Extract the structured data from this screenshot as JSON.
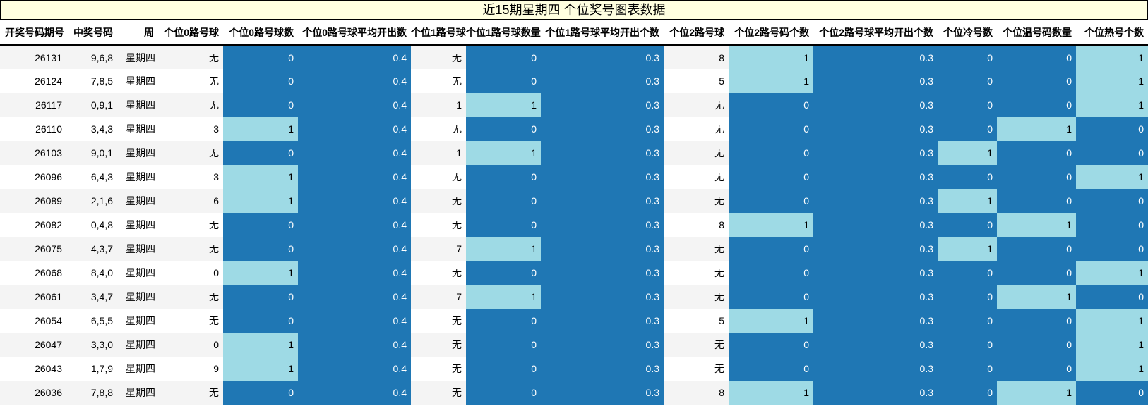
{
  "title": "近15期星期四 个位奖号图表数据",
  "colors": {
    "title_bg": "#ffffe0",
    "dark_fill": "#1f77b4",
    "light_fill": "#9edae5",
    "stripe": "#f4f4f4"
  },
  "columns": [
    "开奖号码期号",
    "中奖号码",
    "周",
    "个位0路号球",
    "个位0路号球数",
    "个位0路号球平均开出数",
    "个位1路号球",
    "个位1路号球数量",
    "个位1路号球平均开出个数",
    "个位2路号球",
    "个位2路号码个数",
    "个位2路号球平均开出个数",
    "个位冷号数",
    "个位温号码数量",
    "个位热号个数"
  ],
  "rows": [
    [
      "26131",
      "9,6,8",
      "星期四",
      "无",
      "0",
      "0.4",
      "无",
      "0",
      "0.3",
      "8",
      "1",
      "0.3",
      "0",
      "0",
      "1"
    ],
    [
      "26124",
      "7,8,5",
      "星期四",
      "无",
      "0",
      "0.4",
      "无",
      "0",
      "0.3",
      "5",
      "1",
      "0.3",
      "0",
      "0",
      "1"
    ],
    [
      "26117",
      "0,9,1",
      "星期四",
      "无",
      "0",
      "0.4",
      "1",
      "1",
      "0.3",
      "无",
      "0",
      "0.3",
      "0",
      "0",
      "1"
    ],
    [
      "26110",
      "3,4,3",
      "星期四",
      "3",
      "1",
      "0.4",
      "无",
      "0",
      "0.3",
      "无",
      "0",
      "0.3",
      "0",
      "1",
      "0"
    ],
    [
      "26103",
      "9,0,1",
      "星期四",
      "无",
      "0",
      "0.4",
      "1",
      "1",
      "0.3",
      "无",
      "0",
      "0.3",
      "1",
      "0",
      "0"
    ],
    [
      "26096",
      "6,4,3",
      "星期四",
      "3",
      "1",
      "0.4",
      "无",
      "0",
      "0.3",
      "无",
      "0",
      "0.3",
      "0",
      "0",
      "1"
    ],
    [
      "26089",
      "2,1,6",
      "星期四",
      "6",
      "1",
      "0.4",
      "无",
      "0",
      "0.3",
      "无",
      "0",
      "0.3",
      "1",
      "0",
      "0"
    ],
    [
      "26082",
      "0,4,8",
      "星期四",
      "无",
      "0",
      "0.4",
      "无",
      "0",
      "0.3",
      "8",
      "1",
      "0.3",
      "0",
      "1",
      "0"
    ],
    [
      "26075",
      "4,3,7",
      "星期四",
      "无",
      "0",
      "0.4",
      "7",
      "1",
      "0.3",
      "无",
      "0",
      "0.3",
      "1",
      "0",
      "0"
    ],
    [
      "26068",
      "8,4,0",
      "星期四",
      "0",
      "1",
      "0.4",
      "无",
      "0",
      "0.3",
      "无",
      "0",
      "0.3",
      "0",
      "0",
      "1"
    ],
    [
      "26061",
      "3,4,7",
      "星期四",
      "无",
      "0",
      "0.4",
      "7",
      "1",
      "0.3",
      "无",
      "0",
      "0.3",
      "0",
      "1",
      "0"
    ],
    [
      "26054",
      "6,5,5",
      "星期四",
      "无",
      "0",
      "0.4",
      "无",
      "0",
      "0.3",
      "5",
      "1",
      "0.3",
      "0",
      "0",
      "1"
    ],
    [
      "26047",
      "3,3,0",
      "星期四",
      "0",
      "1",
      "0.4",
      "无",
      "0",
      "0.3",
      "无",
      "0",
      "0.3",
      "0",
      "0",
      "1"
    ],
    [
      "26043",
      "1,7,9",
      "星期四",
      "9",
      "1",
      "0.4",
      "无",
      "0",
      "0.3",
      "无",
      "0",
      "0.3",
      "0",
      "0",
      "1"
    ],
    [
      "26036",
      "7,8,8",
      "星期四",
      "无",
      "0",
      "0.4",
      "无",
      "0",
      "0.3",
      "8",
      "1",
      "0.3",
      "0",
      "1",
      "0"
    ]
  ]
}
